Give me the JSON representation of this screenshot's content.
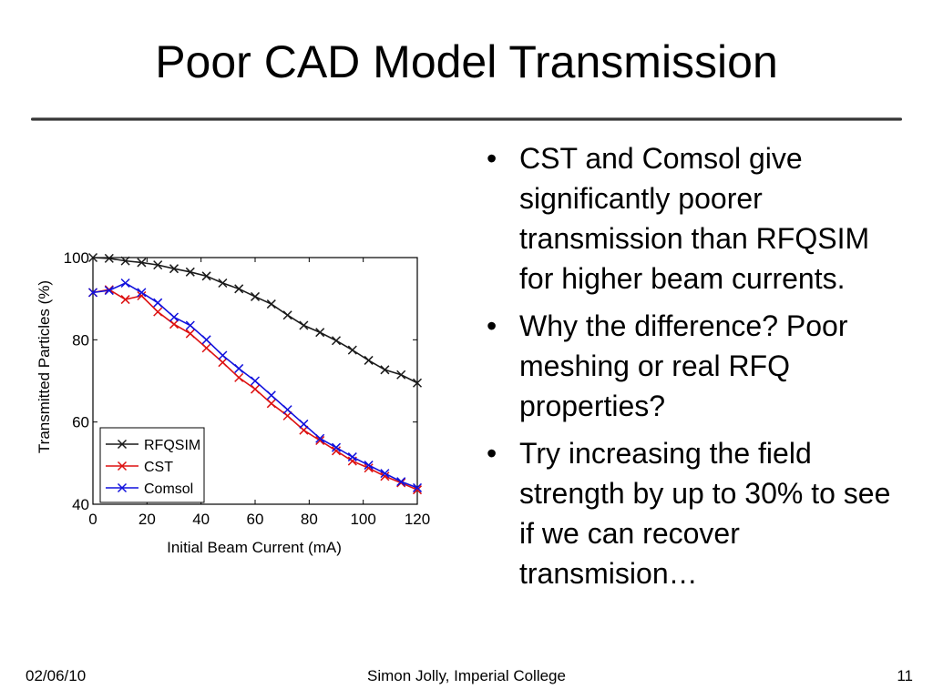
{
  "slide": {
    "title": "Poor CAD Model Transmission",
    "bullet_glyph": "•",
    "bullets": [
      "CST and Comsol give significantly poorer transmission than RFQSIM for higher beam currents.",
      "Why the difference? Poor meshing or real RFQ properties?",
      "Try increasing the field strength by up to 30% to see if we can recover transmision…"
    ],
    "footer": {
      "date": "02/06/10",
      "center": "Simon Jolly, Imperial College",
      "page": "11"
    }
  },
  "chart_data": {
    "type": "line",
    "title": "",
    "xlabel": "Initial Beam Current (mA)",
    "ylabel": "Transmitted Particles (%)",
    "xlim": [
      0,
      120
    ],
    "ylim": [
      40,
      100
    ],
    "xticks": [
      0,
      20,
      40,
      60,
      80,
      100,
      120
    ],
    "yticks": [
      40,
      60,
      80,
      100
    ],
    "grid": false,
    "legend_position": "bottom-left",
    "marker": "x",
    "x": [
      0,
      6,
      12,
      18,
      24,
      30,
      36,
      42,
      48,
      54,
      60,
      66,
      72,
      78,
      84,
      90,
      96,
      102,
      108,
      114,
      120
    ],
    "series": [
      {
        "name": "RFQSIM",
        "color": "#1a1a1a",
        "values": [
          100,
          99.8,
          99.2,
          98.8,
          98.2,
          97.3,
          96.5,
          95.5,
          93.8,
          92.4,
          90.5,
          88.7,
          86.0,
          83.5,
          81.8,
          79.8,
          77.5,
          75.0,
          72.7,
          71.5,
          69.5
        ]
      },
      {
        "name": "CST",
        "color": "#dd1111",
        "values": [
          91.5,
          92.2,
          89.8,
          90.7,
          86.8,
          83.8,
          81.5,
          78.0,
          74.5,
          70.8,
          68.0,
          64.5,
          61.5,
          58.0,
          55.5,
          53.0,
          50.5,
          48.8,
          46.8,
          45.2,
          43.5
        ]
      },
      {
        "name": "Comsol",
        "color": "#1111dd",
        "values": [
          91.5,
          92.0,
          93.8,
          91.5,
          89.0,
          85.5,
          83.5,
          80.0,
          76.2,
          73.0,
          70.0,
          66.5,
          63.0,
          59.5,
          56.0,
          53.8,
          51.5,
          49.5,
          47.5,
          45.5,
          44.0
        ]
      }
    ]
  }
}
